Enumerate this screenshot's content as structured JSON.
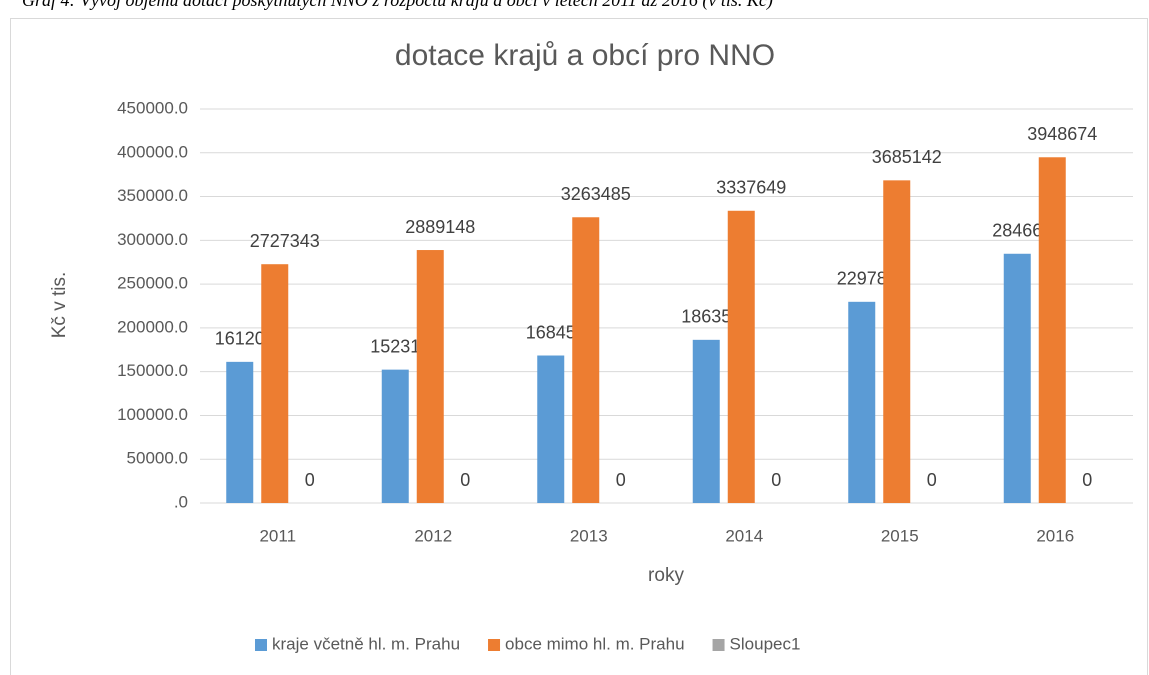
{
  "chart_data": {
    "type": "bar",
    "caption": "Graf 4: Vývoj objemu dotací poskytnutých NNO z rozpočtu krajů a obcí v letech 2011 až 2016 (v tis. Kč)",
    "title": "dotace krajů a obcí pro NNO",
    "x_label": "roky",
    "y_label": "Kč v tis.",
    "categories": [
      "2011",
      "2012",
      "2013",
      "2014",
      "2015",
      "2016"
    ],
    "series": [
      {
        "name": "kraje včetně hl. m. Prahu",
        "color": "#5b9bd5",
        "values": [
          161206.9,
          152318.2,
          168453.8,
          186357.1,
          229786.3,
          284666.3
        ],
        "value_labels": [
          "1612069",
          "1523182",
          "1684538",
          "1863571",
          "2297863",
          "2846663"
        ]
      },
      {
        "name": "obce mimo hl. m. Prahu",
        "color": "#ed7d31",
        "values": [
          272734.3,
          288914.8,
          326348.5,
          333764.9,
          368514.2,
          394867.4
        ],
        "value_labels": [
          "2727343",
          "2889148",
          "3263485",
          "3337649",
          "3685142",
          "3948674"
        ]
      },
      {
        "name": "Sloupec1",
        "color": "#a5a5a5",
        "values": [
          0,
          0,
          0,
          0,
          0,
          0
        ]
      }
    ],
    "ylim": [
      0,
      450000
    ],
    "yticks": [
      {
        "value": 0,
        "label": ".0"
      },
      {
        "value": 50000,
        "label": "50000.0"
      },
      {
        "value": 100000,
        "label": "100000.0"
      },
      {
        "value": 150000,
        "label": "150000.0"
      },
      {
        "value": 200000,
        "label": "200000.0"
      },
      {
        "value": 250000,
        "label": "250000.0"
      },
      {
        "value": 300000,
        "label": "300000.0"
      },
      {
        "value": 350000,
        "label": "350000.0"
      },
      {
        "value": 400000,
        "label": "400000.0"
      },
      {
        "value": 450000,
        "label": "450000.0"
      }
    ],
    "grid": true,
    "legend": "bottom"
  }
}
